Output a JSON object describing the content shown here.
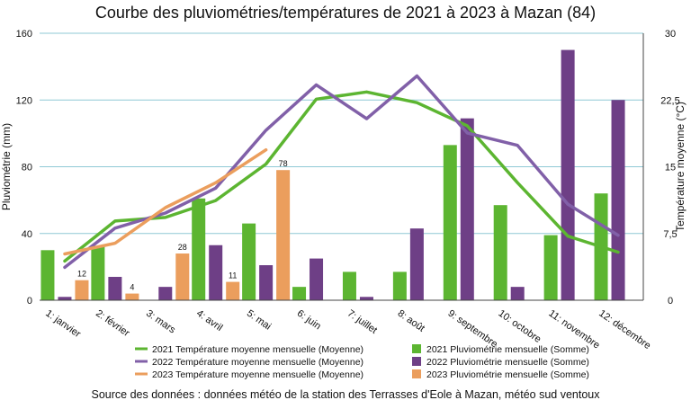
{
  "chart_data": {
    "type": "bar+line",
    "title": "Courbe des pluviométries/températures de 2021 à 2023 à Mazan (84)",
    "source": "Source des données : données météo de la station des Terrasses d'Eole à Mazan, météo sud ventoux",
    "categories": [
      "1: janvier",
      "2: février",
      "3: mars",
      "4: avril",
      "5: mai",
      "6: juin",
      "7: juillet",
      "8: août",
      "9: septembre",
      "10: octobre",
      "11: novembre",
      "12: décembre"
    ],
    "y_left": {
      "label": "Pluviométrie (mm)",
      "min": 0,
      "max": 160,
      "ticks": [
        "0",
        "40",
        "80",
        "120",
        "160"
      ]
    },
    "y_right": {
      "label": "Température moyenne (°C)",
      "min": 0,
      "max": 30,
      "ticks": [
        "0",
        "7,5",
        "15",
        "22,5",
        "30"
      ]
    },
    "grid": true,
    "bar_series": [
      {
        "name": "2021 Pluviométrie mensuelle (Somme)",
        "color": "#5cb531",
        "values": [
          30,
          32,
          0,
          61,
          46,
          8,
          17,
          17,
          93,
          57,
          39,
          64
        ]
      },
      {
        "name": "2022 Pluviométrie mensuelle (Somme)",
        "color": "#6e3f86",
        "values": [
          2,
          14,
          8,
          33,
          21,
          25,
          2,
          43,
          109,
          8,
          150,
          120
        ]
      },
      {
        "name": "2023 Pluviométrie mensuelle (Somme)",
        "color": "#eb9e5d",
        "values": [
          12,
          4,
          28,
          11,
          78,
          null,
          null,
          null,
          null,
          null,
          null,
          null
        ],
        "labels": [
          "12",
          "4",
          "28",
          "11",
          "78",
          "",
          "",
          "",
          "",
          "",
          "",
          ""
        ]
      }
    ],
    "line_series": [
      {
        "name": "2021 Température moyenne mensuelle (Moyenne)",
        "color": "#5cb531",
        "values": [
          4.4,
          8.9,
          9.3,
          11.2,
          15.3,
          22.6,
          23.4,
          22.2,
          19.6,
          13.2,
          7.2,
          5.4
        ]
      },
      {
        "name": "2022 Température moyenne mensuelle (Moyenne)",
        "color": "#8160a8",
        "values": [
          3.7,
          8.1,
          9.8,
          12.6,
          19.1,
          24.2,
          20.4,
          25.2,
          18.8,
          17.4,
          10.8,
          7.3
        ]
      },
      {
        "name": "2023 Température moyenne mensuelle (Moyenne)",
        "color": "#eb9e5d",
        "values": [
          5.2,
          6.4,
          10.4,
          13.2,
          16.9,
          null,
          null,
          null,
          null,
          null,
          null,
          null
        ]
      }
    ],
    "legend_placement": "bottom"
  }
}
